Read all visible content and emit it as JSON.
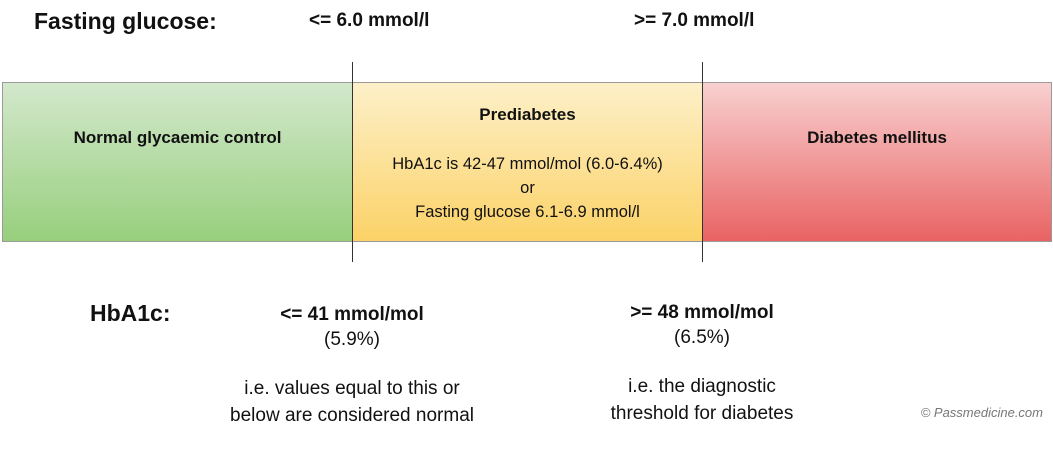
{
  "fasting_glucose": {
    "title": "Fasting glucose:",
    "normal_threshold": "<= 6.0 mmol/l",
    "diabetes_threshold": ">= 7.0 mmol/l"
  },
  "bands": {
    "normal": {
      "label": "Normal glycaemic control",
      "color": "#97cf7d"
    },
    "prediabetes": {
      "label": "Prediabetes",
      "line1": "HbA1c is 42-47 mmol/mol (6.0-6.4%)",
      "line2": "or",
      "line3": "Fasting glucose 6.1-6.9 mmol/l",
      "color": "#fbd267"
    },
    "diabetes": {
      "label": "Diabetes mellitus",
      "color": "#e96363"
    }
  },
  "hba1c": {
    "title": "HbA1c:",
    "normal": {
      "value": "<= 41 mmol/mol",
      "percent": "(5.9%)",
      "note_line1": "i.e. values equal to this or",
      "note_line2": "below are considered normal"
    },
    "diabetes": {
      "value": ">= 48 mmol/mol",
      "percent": "(6.5%)",
      "note_line1": "i.e. the diagnostic",
      "note_line2": "threshold for diabetes"
    }
  },
  "copyright": "© Passmedicine.com"
}
